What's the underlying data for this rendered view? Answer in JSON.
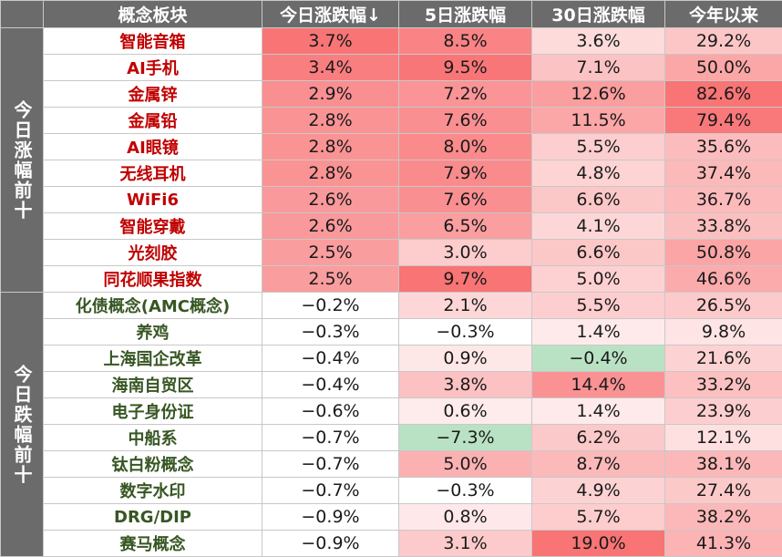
{
  "headers": [
    "概念板块",
    "今日涨跌幅↓",
    "5日涨跌幅",
    "30日涨跌幅",
    "今年以来"
  ],
  "groups": {
    "top": "今日涨幅前十",
    "bottom": "今日跌幅前十"
  },
  "rows_top": [
    {
      "name": "智能音箱",
      "today": "3.7%",
      "d5": "8.5%",
      "d30": "3.6%",
      "ytd": "29.2%"
    },
    {
      "name": "AI手机",
      "today": "3.4%",
      "d5": "9.5%",
      "d30": "7.1%",
      "ytd": "50.0%"
    },
    {
      "name": "金属锌",
      "today": "2.9%",
      "d5": "7.2%",
      "d30": "12.6%",
      "ytd": "82.6%"
    },
    {
      "name": "金属铅",
      "today": "2.8%",
      "d5": "7.6%",
      "d30": "11.5%",
      "ytd": "79.4%"
    },
    {
      "name": "AI眼镜",
      "today": "2.8%",
      "d5": "8.0%",
      "d30": "5.5%",
      "ytd": "35.6%"
    },
    {
      "name": "无线耳机",
      "today": "2.8%",
      "d5": "7.9%",
      "d30": "4.8%",
      "ytd": "37.4%"
    },
    {
      "name": "WiFi6",
      "today": "2.6%",
      "d5": "7.6%",
      "d30": "6.6%",
      "ytd": "36.7%"
    },
    {
      "name": "智能穿戴",
      "today": "2.6%",
      "d5": "6.5%",
      "d30": "4.1%",
      "ytd": "33.8%"
    },
    {
      "name": "光刻胶",
      "today": "2.5%",
      "d5": "3.0%",
      "d30": "6.6%",
      "ytd": "50.8%"
    },
    {
      "name": "同花顺果指数",
      "today": "2.5%",
      "d5": "9.7%",
      "d30": "5.0%",
      "ytd": "46.6%"
    }
  ],
  "rows_bottom": [
    {
      "name": "化债概念(AMC概念)",
      "today": "−0.2%",
      "d5": "2.1%",
      "d30": "5.5%",
      "ytd": "26.5%"
    },
    {
      "name": "养鸡",
      "today": "−0.3%",
      "d5": "−0.3%",
      "d30": "1.4%",
      "ytd": "9.8%"
    },
    {
      "name": "上海国企改革",
      "today": "−0.4%",
      "d5": "0.9%",
      "d30": "−0.4%",
      "ytd": "21.6%"
    },
    {
      "name": "海南自贸区",
      "today": "−0.4%",
      "d5": "3.8%",
      "d30": "14.4%",
      "ytd": "33.2%"
    },
    {
      "name": "电子身份证",
      "today": "−0.6%",
      "d5": "0.6%",
      "d30": "1.4%",
      "ytd": "23.9%"
    },
    {
      "name": "中船系",
      "today": "−0.7%",
      "d5": "−7.3%",
      "d30": "6.2%",
      "ytd": "12.1%"
    },
    {
      "name": "钛白粉概念",
      "today": "−0.7%",
      "d5": "5.0%",
      "d30": "8.7%",
      "ytd": "38.1%"
    },
    {
      "name": "数字水印",
      "today": "−0.7%",
      "d5": "−0.3%",
      "d30": "4.9%",
      "ytd": "27.4%"
    },
    {
      "name": "DRG/DIP",
      "today": "−0.9%",
      "d5": "0.8%",
      "d30": "5.7%",
      "ytd": "38.2%"
    },
    {
      "name": "赛马概念",
      "today": "−0.9%",
      "d5": "3.1%",
      "d30": "19.0%",
      "ytd": "41.3%"
    }
  ],
  "colors": {
    "header_bg": "#6b6b6b",
    "up_text": "#c00000",
    "down_text": "#375623",
    "positive_max": "#f8696b",
    "negative_max": "#63be7b"
  }
}
